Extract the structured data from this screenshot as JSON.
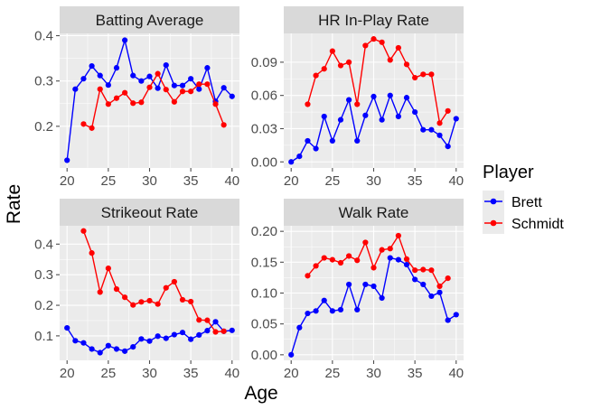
{
  "chart_data": [
    {
      "type": "line",
      "title": "Batting Average",
      "x": [
        20,
        21,
        22,
        23,
        24,
        25,
        26,
        27,
        28,
        29,
        30,
        31,
        32,
        33,
        34,
        35,
        36,
        37,
        38,
        39,
        40
      ],
      "xlim": [
        19.1,
        40.9
      ],
      "ylim": [
        0.108,
        0.405
      ],
      "xticks": [
        20,
        25,
        30,
        35,
        40
      ],
      "yticks": [
        0.2,
        0.3,
        0.4
      ],
      "ytick_labels": [
        "0.2",
        "0.3",
        "0.4"
      ],
      "series": [
        {
          "name": "Brett",
          "color": "#0000ff",
          "points": [
            [
              20,
              0.125
            ],
            [
              21,
              0.282
            ],
            [
              22,
              0.305
            ],
            [
              23,
              0.333
            ],
            [
              24,
              0.312
            ],
            [
              25,
              0.291
            ],
            [
              26,
              0.329
            ],
            [
              27,
              0.39
            ],
            [
              28,
              0.312
            ],
            [
              29,
              0.3
            ],
            [
              30,
              0.31
            ],
            [
              31,
              0.284
            ],
            [
              32,
              0.335
            ],
            [
              33,
              0.29
            ],
            [
              34,
              0.29
            ],
            [
              35,
              0.305
            ],
            [
              36,
              0.282
            ],
            [
              37,
              0.329
            ],
            [
              38,
              0.255
            ],
            [
              39,
              0.285
            ],
            [
              40,
              0.266
            ]
          ]
        },
        {
          "name": "Schmidt",
          "color": "#ff0000",
          "points": [
            [
              22,
              0.205
            ],
            [
              23,
              0.196
            ],
            [
              24,
              0.282
            ],
            [
              25,
              0.249
            ],
            [
              26,
              0.262
            ],
            [
              27,
              0.274
            ],
            [
              28,
              0.251
            ],
            [
              29,
              0.253
            ],
            [
              30,
              0.286
            ],
            [
              31,
              0.316
            ],
            [
              32,
              0.281
            ],
            [
              33,
              0.254
            ],
            [
              34,
              0.277
            ],
            [
              35,
              0.277
            ],
            [
              36,
              0.293
            ],
            [
              37,
              0.293
            ],
            [
              38,
              0.249
            ],
            [
              39,
              0.203
            ]
          ]
        }
      ]
    },
    {
      "type": "line",
      "title": "HR In-Play Rate",
      "x": [
        20,
        21,
        22,
        23,
        24,
        25,
        26,
        27,
        28,
        29,
        30,
        31,
        32,
        33,
        34,
        35,
        36,
        37,
        38,
        39,
        40
      ],
      "xlim": [
        19.1,
        40.9
      ],
      "ylim": [
        -0.0055,
        0.116
      ],
      "xticks": [
        20,
        25,
        30,
        35,
        40
      ],
      "yticks": [
        0.0,
        0.03,
        0.06,
        0.09
      ],
      "ytick_labels": [
        "0.00",
        "0.03",
        "0.06",
        "0.09"
      ],
      "series": [
        {
          "name": "Brett",
          "color": "#0000ff",
          "points": [
            [
              20,
              0.0
            ],
            [
              21,
              0.005
            ],
            [
              22,
              0.019
            ],
            [
              23,
              0.012
            ],
            [
              24,
              0.041
            ],
            [
              25,
              0.019
            ],
            [
              26,
              0.038
            ],
            [
              27,
              0.056
            ],
            [
              28,
              0.019
            ],
            [
              29,
              0.042
            ],
            [
              30,
              0.059
            ],
            [
              31,
              0.038
            ],
            [
              32,
              0.06
            ],
            [
              33,
              0.041
            ],
            [
              34,
              0.058
            ],
            [
              35,
              0.045
            ],
            [
              36,
              0.029
            ],
            [
              37,
              0.029
            ],
            [
              38,
              0.024
            ],
            [
              39,
              0.014
            ],
            [
              40,
              0.039
            ]
          ]
        },
        {
          "name": "Schmidt",
          "color": "#ff0000",
          "points": [
            [
              22,
              0.052
            ],
            [
              23,
              0.078
            ],
            [
              24,
              0.084
            ],
            [
              25,
              0.1
            ],
            [
              26,
              0.087
            ],
            [
              27,
              0.09
            ],
            [
              28,
              0.052
            ],
            [
              29,
              0.105
            ],
            [
              30,
              0.111
            ],
            [
              31,
              0.108
            ],
            [
              32,
              0.092
            ],
            [
              33,
              0.103
            ],
            [
              34,
              0.088
            ],
            [
              35,
              0.076
            ],
            [
              36,
              0.079
            ],
            [
              37,
              0.079
            ],
            [
              38,
              0.035
            ],
            [
              39,
              0.046
            ]
          ]
        }
      ]
    },
    {
      "type": "line",
      "title": "Strikeout Rate",
      "x": [
        20,
        21,
        22,
        23,
        24,
        25,
        26,
        27,
        28,
        29,
        30,
        31,
        32,
        33,
        34,
        35,
        36,
        37,
        38,
        39,
        40
      ],
      "xlim": [
        19.1,
        40.9
      ],
      "ylim": [
        0.02,
        0.46
      ],
      "xticks": [
        20,
        25,
        30,
        35,
        40
      ],
      "yticks": [
        0.1,
        0.2,
        0.3,
        0.4
      ],
      "ytick_labels": [
        "0.1",
        "0.2",
        "0.3",
        "0.4"
      ],
      "series": [
        {
          "name": "Brett",
          "color": "#0000ff",
          "points": [
            [
              20,
              0.126
            ],
            [
              21,
              0.084
            ],
            [
              22,
              0.077
            ],
            [
              23,
              0.057
            ],
            [
              24,
              0.045
            ],
            [
              25,
              0.068
            ],
            [
              26,
              0.057
            ],
            [
              27,
              0.05
            ],
            [
              28,
              0.064
            ],
            [
              29,
              0.09
            ],
            [
              30,
              0.083
            ],
            [
              31,
              0.099
            ],
            [
              32,
              0.092
            ],
            [
              33,
              0.104
            ],
            [
              34,
              0.111
            ],
            [
              35,
              0.089
            ],
            [
              36,
              0.103
            ],
            [
              37,
              0.117
            ],
            [
              38,
              0.146
            ],
            [
              39,
              0.115
            ],
            [
              40,
              0.118
            ]
          ]
        },
        {
          "name": "Schmidt",
          "color": "#ff0000",
          "points": [
            [
              22,
              0.443
            ],
            [
              23,
              0.371
            ],
            [
              24,
              0.243
            ],
            [
              25,
              0.321
            ],
            [
              26,
              0.253
            ],
            [
              27,
              0.226
            ],
            [
              28,
              0.201
            ],
            [
              29,
              0.211
            ],
            [
              30,
              0.215
            ],
            [
              31,
              0.204
            ],
            [
              32,
              0.257
            ],
            [
              33,
              0.277
            ],
            [
              34,
              0.218
            ],
            [
              35,
              0.212
            ],
            [
              36,
              0.152
            ],
            [
              37,
              0.151
            ],
            [
              38,
              0.113
            ],
            [
              39,
              0.115
            ]
          ]
        }
      ]
    },
    {
      "type": "line",
      "title": "Walk Rate",
      "x": [
        20,
        21,
        22,
        23,
        24,
        25,
        26,
        27,
        28,
        29,
        30,
        31,
        32,
        33,
        34,
        35,
        36,
        37,
        38,
        39,
        40
      ],
      "xlim": [
        19.1,
        40.9
      ],
      "ylim": [
        -0.009,
        0.209
      ],
      "xticks": [
        20,
        25,
        30,
        35,
        40
      ],
      "yticks": [
        0.0,
        0.05,
        0.1,
        0.15,
        0.2
      ],
      "ytick_labels": [
        "0.00",
        "0.05",
        "0.10",
        "0.15",
        "0.20"
      ],
      "series": [
        {
          "name": "Brett",
          "color": "#0000ff",
          "points": [
            [
              20,
              0.0
            ],
            [
              21,
              0.044
            ],
            [
              22,
              0.067
            ],
            [
              23,
              0.071
            ],
            [
              24,
              0.088
            ],
            [
              25,
              0.071
            ],
            [
              26,
              0.073
            ],
            [
              27,
              0.114
            ],
            [
              28,
              0.073
            ],
            [
              29,
              0.114
            ],
            [
              30,
              0.111
            ],
            [
              31,
              0.092
            ],
            [
              32,
              0.157
            ],
            [
              33,
              0.154
            ],
            [
              34,
              0.146
            ],
            [
              35,
              0.122
            ],
            [
              36,
              0.114
            ],
            [
              37,
              0.095
            ],
            [
              38,
              0.101
            ],
            [
              39,
              0.056
            ],
            [
              40,
              0.065
            ]
          ]
        },
        {
          "name": "Schmidt",
          "color": "#ff0000",
          "points": [
            [
              22,
              0.128
            ],
            [
              23,
              0.144
            ],
            [
              24,
              0.157
            ],
            [
              25,
              0.154
            ],
            [
              26,
              0.149
            ],
            [
              27,
              0.16
            ],
            [
              28,
              0.153
            ],
            [
              29,
              0.182
            ],
            [
              30,
              0.141
            ],
            [
              31,
              0.17
            ],
            [
              32,
              0.172
            ],
            [
              33,
              0.193
            ],
            [
              34,
              0.155
            ],
            [
              35,
              0.137
            ],
            [
              36,
              0.138
            ],
            [
              37,
              0.137
            ],
            [
              38,
              0.111
            ],
            [
              39,
              0.124
            ]
          ]
        }
      ]
    }
  ],
  "axes": {
    "xlabel": "Age",
    "ylabel": "Rate",
    "xtick_labels": [
      "20",
      "25",
      "30",
      "35",
      "40"
    ]
  },
  "legend": {
    "title": "Player",
    "placement": "right",
    "entries": [
      {
        "label": "Brett",
        "color": "#0000ff"
      },
      {
        "label": "Schmidt",
        "color": "#ff0000"
      }
    ]
  },
  "style": {
    "panel_bg": "#ebebeb",
    "strip_bg": "#d9d9d9",
    "grid_major": "#ffffff",
    "tick_color": "#4d4d4d"
  }
}
